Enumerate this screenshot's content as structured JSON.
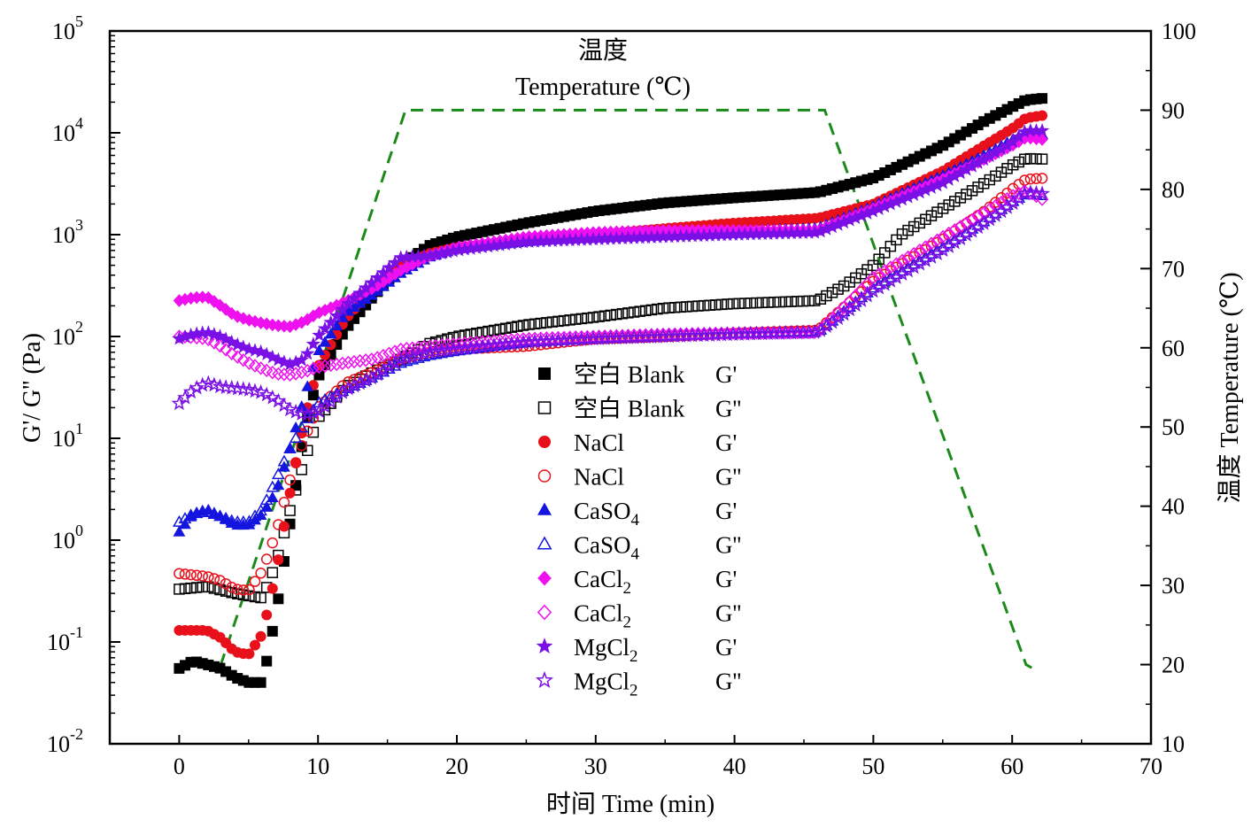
{
  "chart_data": {
    "type": "scatter",
    "xlabel": "时间 Time (min)",
    "ylabel_left": "G'/ G'' (Pa)",
    "ylabel_right": "温度 Temperature (℃)",
    "annotation": {
      "line1": "温度",
      "line2": "Temperature (℃)"
    },
    "xlim": [
      -5,
      70
    ],
    "x_ticks": [
      0,
      10,
      20,
      30,
      40,
      50,
      60,
      70
    ],
    "ylim_left_log10": [
      -2,
      5
    ],
    "y_left_scale": "log",
    "y_left_ticks": [
      {
        "base": "10",
        "exp": "-2",
        "value": -2
      },
      {
        "base": "10",
        "exp": "-1",
        "value": -1
      },
      {
        "base": "10",
        "exp": "0",
        "value": 0
      },
      {
        "base": "10",
        "exp": "1",
        "value": 1
      },
      {
        "base": "10",
        "exp": "2",
        "value": 2
      },
      {
        "base": "10",
        "exp": "3",
        "value": 3
      },
      {
        "base": "10",
        "exp": "4",
        "value": 4
      },
      {
        "base": "10",
        "exp": "5",
        "value": 5
      }
    ],
    "ylim_right": [
      10,
      100
    ],
    "y_right_ticks": [
      10,
      20,
      30,
      40,
      50,
      60,
      70,
      80,
      90,
      100
    ],
    "grid": false,
    "legend_position": "center",
    "temperature": {
      "color": "#1a8a1a",
      "style": "dashed",
      "points": [
        [
          0,
          20
        ],
        [
          3,
          20
        ],
        [
          16.3,
          90
        ],
        [
          46.5,
          90
        ],
        [
          61,
          20
        ],
        [
          61.5,
          19.5
        ]
      ]
    },
    "series": [
      {
        "legend_name": "空白 Blank",
        "sub": "",
        "modulus": "G'",
        "marker": "square",
        "filled": true,
        "color": "#000000",
        "points": [
          [
            0,
            0.055
          ],
          [
            1,
            0.065
          ],
          [
            2,
            0.06
          ],
          [
            3,
            0.055
          ],
          [
            4,
            0.045
          ],
          [
            5,
            0.04
          ],
          [
            6,
            0.04
          ],
          [
            7,
            0.2
          ],
          [
            8,
            1.5
          ],
          [
            9,
            12
          ],
          [
            10,
            40
          ],
          [
            12,
            120
          ],
          [
            14,
            250
          ],
          [
            16,
            500
          ],
          [
            18,
            780
          ],
          [
            20,
            950
          ],
          [
            25,
            1300
          ],
          [
            30,
            1700
          ],
          [
            35,
            2050
          ],
          [
            40,
            2300
          ],
          [
            46,
            2600
          ],
          [
            50,
            3600
          ],
          [
            55,
            7500
          ],
          [
            58,
            13000
          ],
          [
            60,
            18000
          ],
          [
            61,
            21000
          ],
          [
            62.5,
            22000
          ]
        ]
      },
      {
        "legend_name": "空白 Blank",
        "sub": "",
        "modulus": "G''",
        "marker": "square",
        "filled": false,
        "color": "#000000",
        "points": [
          [
            0,
            0.33
          ],
          [
            2,
            0.35
          ],
          [
            4,
            0.3
          ],
          [
            6,
            0.27
          ],
          [
            7,
            0.6
          ],
          [
            8,
            2
          ],
          [
            9,
            6
          ],
          [
            10,
            16
          ],
          [
            12,
            32
          ],
          [
            14,
            45
          ],
          [
            16,
            60
          ],
          [
            18,
            85
          ],
          [
            20,
            100
          ],
          [
            25,
            130
          ],
          [
            30,
            155
          ],
          [
            35,
            190
          ],
          [
            40,
            210
          ],
          [
            46,
            225
          ],
          [
            48,
            320
          ],
          [
            50,
            500
          ],
          [
            52,
            1000
          ],
          [
            55,
            1800
          ],
          [
            58,
            3200
          ],
          [
            60,
            4800
          ],
          [
            61,
            5600
          ],
          [
            62.5,
            5500
          ]
        ]
      },
      {
        "legend_name": "NaCl",
        "sub": "",
        "modulus": "G'",
        "marker": "circle",
        "filled": true,
        "color": "#e8101a",
        "points": [
          [
            0,
            0.13
          ],
          [
            2,
            0.13
          ],
          [
            3,
            0.11
          ],
          [
            4,
            0.08
          ],
          [
            5,
            0.075
          ],
          [
            6,
            0.12
          ],
          [
            7,
            0.5
          ],
          [
            8,
            3
          ],
          [
            9,
            15
          ],
          [
            10,
            50
          ],
          [
            12,
            150
          ],
          [
            14,
            300
          ],
          [
            16,
            500
          ],
          [
            18,
            650
          ],
          [
            20,
            750
          ],
          [
            25,
            900
          ],
          [
            30,
            1000
          ],
          [
            35,
            1150
          ],
          [
            40,
            1300
          ],
          [
            46,
            1450
          ],
          [
            50,
            2000
          ],
          [
            55,
            4200
          ],
          [
            58,
            7500
          ],
          [
            60,
            11000
          ],
          [
            61,
            14000
          ],
          [
            62.5,
            15000
          ]
        ]
      },
      {
        "legend_name": "NaCl",
        "sub": "",
        "modulus": "G''",
        "marker": "circle",
        "filled": false,
        "color": "#e8101a",
        "points": [
          [
            0,
            0.47
          ],
          [
            2,
            0.44
          ],
          [
            3,
            0.4
          ],
          [
            4,
            0.33
          ],
          [
            5,
            0.32
          ],
          [
            6,
            0.5
          ],
          [
            7,
            1.2
          ],
          [
            8,
            4
          ],
          [
            9,
            10
          ],
          [
            10,
            20
          ],
          [
            12,
            35
          ],
          [
            14,
            45
          ],
          [
            16,
            60
          ],
          [
            18,
            70
          ],
          [
            20,
            75
          ],
          [
            25,
            80
          ],
          [
            30,
            95
          ],
          [
            35,
            100
          ],
          [
            40,
            108
          ],
          [
            46,
            115
          ],
          [
            48,
            200
          ],
          [
            50,
            350
          ],
          [
            55,
            900
          ],
          [
            58,
            1700
          ],
          [
            60,
            2800
          ],
          [
            61,
            3500
          ],
          [
            62.5,
            3600
          ]
        ]
      },
      {
        "legend_name": "CaSO",
        "sub": "4",
        "modulus": "G'",
        "marker": "triangle",
        "filled": true,
        "color": "#1515e0",
        "points": [
          [
            0,
            1.2
          ],
          [
            1,
            1.8
          ],
          [
            2,
            2.0
          ],
          [
            3,
            1.7
          ],
          [
            4,
            1.4
          ],
          [
            5,
            1.4
          ],
          [
            6,
            1.8
          ],
          [
            7,
            3
          ],
          [
            8,
            8
          ],
          [
            9,
            25
          ],
          [
            10,
            70
          ],
          [
            12,
            170
          ],
          [
            14,
            260
          ],
          [
            16,
            420
          ],
          [
            18,
            600
          ],
          [
            20,
            720
          ],
          [
            25,
            850
          ],
          [
            30,
            950
          ],
          [
            35,
            1050
          ],
          [
            40,
            1100
          ],
          [
            46,
            1150
          ],
          [
            50,
            1900
          ],
          [
            55,
            3800
          ],
          [
            58,
            6000
          ],
          [
            60,
            8500
          ],
          [
            61,
            10000
          ],
          [
            62.5,
            9500
          ]
        ]
      },
      {
        "legend_name": "CaSO",
        "sub": "4",
        "modulus": "G''",
        "marker": "triangle",
        "filled": false,
        "color": "#1515e0",
        "points": [
          [
            0,
            1.5
          ],
          [
            1,
            1.8
          ],
          [
            2,
            1.9
          ],
          [
            3,
            1.7
          ],
          [
            4,
            1.5
          ],
          [
            5,
            1.5
          ],
          [
            6,
            2.0
          ],
          [
            7,
            4
          ],
          [
            8,
            8
          ],
          [
            9,
            14
          ],
          [
            10,
            22
          ],
          [
            12,
            30
          ],
          [
            14,
            40
          ],
          [
            16,
            55
          ],
          [
            18,
            65
          ],
          [
            20,
            72
          ],
          [
            25,
            88
          ],
          [
            30,
            95
          ],
          [
            35,
            100
          ],
          [
            40,
            106
          ],
          [
            46,
            110
          ],
          [
            48,
            180
          ],
          [
            50,
            300
          ],
          [
            55,
            750
          ],
          [
            58,
            1350
          ],
          [
            60,
            2100
          ],
          [
            61,
            2500
          ],
          [
            62.5,
            2400
          ]
        ]
      },
      {
        "legend_name": "CaCl",
        "sub": "2",
        "modulus": "G'",
        "marker": "diamond",
        "filled": true,
        "color": "#ee10ee",
        "points": [
          [
            0,
            225
          ],
          [
            1,
            240
          ],
          [
            2,
            245
          ],
          [
            3,
            200
          ],
          [
            4,
            160
          ],
          [
            5,
            145
          ],
          [
            6,
            135
          ],
          [
            7,
            128
          ],
          [
            8,
            125
          ],
          [
            9,
            140
          ],
          [
            10,
            170
          ],
          [
            12,
            220
          ],
          [
            14,
            300
          ],
          [
            16,
            450
          ],
          [
            18,
            620
          ],
          [
            20,
            750
          ],
          [
            25,
            950
          ],
          [
            30,
            1050
          ],
          [
            35,
            1100
          ],
          [
            40,
            1100
          ],
          [
            46,
            1100
          ],
          [
            50,
            1800
          ],
          [
            55,
            3500
          ],
          [
            58,
            5500
          ],
          [
            60,
            7500
          ],
          [
            61,
            9000
          ],
          [
            62.5,
            8500
          ]
        ]
      },
      {
        "legend_name": "CaCl",
        "sub": "2",
        "modulus": "G''",
        "marker": "diamond",
        "filled": false,
        "color": "#ee10ee",
        "points": [
          [
            0,
            100
          ],
          [
            1,
            98
          ],
          [
            2,
            95
          ],
          [
            3,
            80
          ],
          [
            4,
            65
          ],
          [
            5,
            55
          ],
          [
            6,
            48
          ],
          [
            7,
            43
          ],
          [
            8,
            42
          ],
          [
            9,
            45
          ],
          [
            10,
            50
          ],
          [
            12,
            55
          ],
          [
            14,
            60
          ],
          [
            16,
            75
          ],
          [
            18,
            80
          ],
          [
            20,
            85
          ],
          [
            25,
            95
          ],
          [
            30,
            100
          ],
          [
            35,
            105
          ],
          [
            40,
            108
          ],
          [
            46,
            110
          ],
          [
            48,
            200
          ],
          [
            50,
            380
          ],
          [
            55,
            950
          ],
          [
            58,
            1650
          ],
          [
            60,
            2400
          ],
          [
            61,
            2700
          ],
          [
            62.5,
            2100
          ]
        ]
      },
      {
        "legend_name": "MgCl",
        "sub": "2",
        "modulus": "G'",
        "marker": "star",
        "filled": true,
        "color": "#7a10e6",
        "points": [
          [
            0,
            95
          ],
          [
            1,
            105
          ],
          [
            2,
            110
          ],
          [
            3,
            100
          ],
          [
            4,
            85
          ],
          [
            5,
            75
          ],
          [
            6,
            70
          ],
          [
            7,
            60
          ],
          [
            8,
            53
          ],
          [
            9,
            60
          ],
          [
            10,
            100
          ],
          [
            12,
            200
          ],
          [
            14,
            350
          ],
          [
            16,
            600
          ],
          [
            18,
            620
          ],
          [
            20,
            700
          ],
          [
            25,
            850
          ],
          [
            30,
            900
          ],
          [
            35,
            950
          ],
          [
            40,
            1000
          ],
          [
            46,
            1050
          ],
          [
            50,
            1700
          ],
          [
            55,
            3200
          ],
          [
            58,
            5500
          ],
          [
            60,
            8000
          ],
          [
            61,
            10500
          ],
          [
            62.5,
            10500
          ]
        ]
      },
      {
        "legend_name": "MgCl",
        "sub": "2",
        "modulus": "G''",
        "marker": "star",
        "filled": false,
        "color": "#7a10e6",
        "points": [
          [
            0,
            22
          ],
          [
            1,
            30
          ],
          [
            2,
            35
          ],
          [
            3,
            32
          ],
          [
            4,
            31
          ],
          [
            5,
            30
          ],
          [
            6,
            28
          ],
          [
            7,
            24
          ],
          [
            8,
            19
          ],
          [
            9,
            17
          ],
          [
            10,
            18
          ],
          [
            12,
            30
          ],
          [
            14,
            40
          ],
          [
            16,
            60
          ],
          [
            18,
            70
          ],
          [
            20,
            75
          ],
          [
            25,
            88
          ],
          [
            30,
            95
          ],
          [
            35,
            100
          ],
          [
            40,
            105
          ],
          [
            46,
            110
          ],
          [
            48,
            170
          ],
          [
            50,
            280
          ],
          [
            55,
            700
          ],
          [
            58,
            1300
          ],
          [
            60,
            2000
          ],
          [
            61,
            2600
          ],
          [
            62.5,
            2500
          ]
        ]
      }
    ]
  }
}
